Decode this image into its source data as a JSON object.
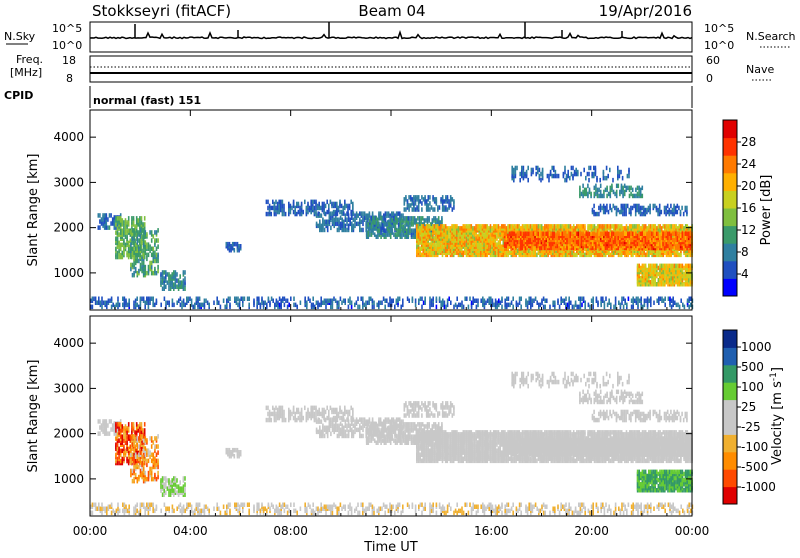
{
  "header": {
    "station": "Stokkseyri (fitACF)",
    "beam": "Beam 04",
    "date": "19/Apr/2016"
  },
  "noise_panel": {
    "left_label": "N.Sky",
    "right_label": "N.Search",
    "left_ticks": [
      "10^5",
      "10^0"
    ],
    "right_ticks": [
      "10^5",
      "10^0"
    ]
  },
  "freq_panel": {
    "left_label_1": "Freq.",
    "left_label_2": "[MHz]",
    "right_label": "Nave",
    "left_ticks": [
      "18",
      "8"
    ],
    "right_ticks": [
      "60",
      "0"
    ],
    "cpid_label": "CPID",
    "cpid_value": "normal (fast) 151"
  },
  "chart_data": [
    {
      "type": "heatmap",
      "quantity": "Power",
      "ylabel": "Slant Range [km]",
      "y_ticks": [
        "4000",
        "3000",
        "2000",
        "1000"
      ],
      "ylim": [
        180,
        4600
      ],
      "colorbar": {
        "label": "Power [dB]",
        "ticks": [
          "28",
          "24",
          "20",
          "16",
          "12",
          "8",
          "4"
        ],
        "range": [
          0,
          32
        ],
        "colors": [
          "#0000ff",
          "#1f4fc0",
          "#2f7fa0",
          "#3a9a6a",
          "#7fbf3f",
          "#c8d020",
          "#ffb000",
          "#ff7a00",
          "#ff3300",
          "#e00000"
        ]
      }
    },
    {
      "type": "heatmap",
      "quantity": "Velocity",
      "ylabel": "Slant Range [km]",
      "y_ticks": [
        "4000",
        "3000",
        "2000",
        "1000"
      ],
      "ylim": [
        180,
        4600
      ],
      "colorbar": {
        "label": "Velocity [m s^-1]",
        "ticks": [
          "1000",
          "500",
          "100",
          "25",
          "-25",
          "-100",
          "-500",
          "-1000"
        ],
        "range": [
          -1000,
          1000
        ],
        "colors": [
          "#e00000",
          "#ff4a00",
          "#ff8c00",
          "#f0b030",
          "#c8c8c8",
          "#c8c8c8",
          "#66cc33",
          "#339966",
          "#1f5fb0",
          "#0a2a8a"
        ]
      }
    }
  ],
  "x_axis": {
    "label": "Time UT",
    "ticks": [
      "00:00",
      "04:00",
      "08:00",
      "12:00",
      "16:00",
      "20:00",
      "00:00"
    ],
    "range_hours": [
      0,
      24
    ]
  }
}
